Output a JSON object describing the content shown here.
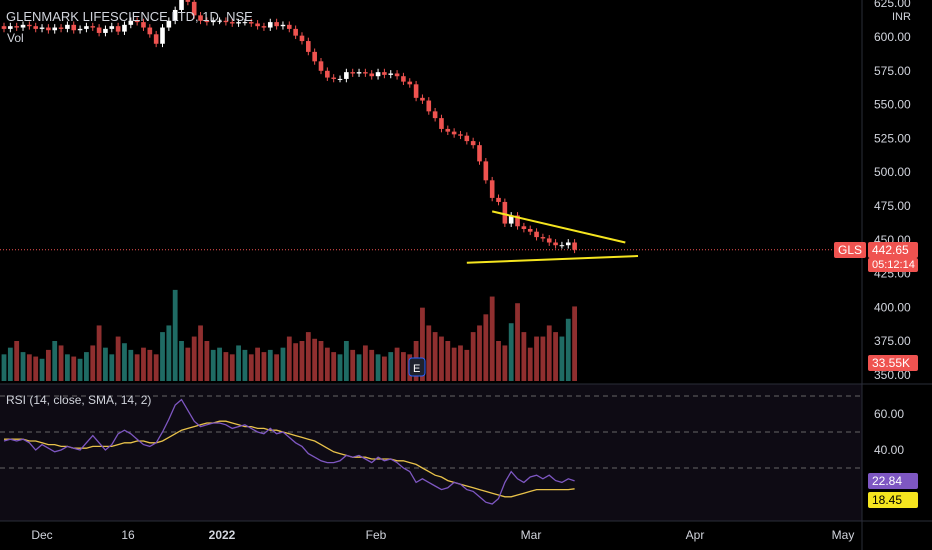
{
  "header": {
    "title": "GLENMARK LIFESCIENCE LTD, 1D, NSE",
    "vol_label": "Vol",
    "currency": "INR"
  },
  "price_axis": {
    "ticks": [
      "625.00",
      "600.00",
      "575.00",
      "550.00",
      "525.00",
      "500.00",
      "475.00",
      "450.00",
      "425.00",
      "400.00",
      "375.00",
      "350.00"
    ]
  },
  "rsi": {
    "label": "RSI (14, close, SMA, 14, 2)",
    "ticks": [
      "60.00",
      "40.00"
    ],
    "rsi_value": "22.84",
    "sma_value": "18.45"
  },
  "time_axis": {
    "labels": [
      "Dec",
      "16",
      "2022",
      "Feb",
      "Mar",
      "Apr",
      "May"
    ]
  },
  "badges": {
    "symbol": "GLS",
    "last_price": "442.65",
    "countdown": "05:12:14",
    "volume": "33.55K"
  },
  "colors": {
    "up": "#26a69a",
    "down": "#ef5350",
    "vol_up": "#1f6b64",
    "vol_down": "#8f2f2f",
    "rsi": "#7e57c2",
    "rsi_sma": "#e8c24a",
    "trendline": "#f5e51f"
  },
  "chart_data": {
    "type": "candlestick",
    "closes": [
      606,
      608,
      607,
      609,
      608,
      606,
      607,
      605,
      607,
      606,
      609,
      605,
      606,
      608,
      607,
      603,
      606,
      608,
      604,
      609,
      612,
      611,
      607,
      602,
      595,
      607,
      612,
      620,
      628,
      626,
      616,
      612,
      611,
      612,
      612,
      611,
      610,
      611,
      611,
      610,
      608,
      607,
      611,
      608,
      609,
      606,
      601,
      597,
      589,
      582,
      575,
      570,
      569,
      569,
      574,
      573,
      574,
      573,
      571,
      574,
      572,
      573,
      571,
      567,
      565,
      555,
      553,
      545,
      540,
      532,
      530,
      528,
      527,
      523,
      520,
      508,
      494,
      481,
      478,
      462,
      468,
      460,
      458,
      456,
      452,
      451,
      448,
      446,
      446,
      448,
      442.65
    ],
    "rsi": [
      45,
      46,
      45,
      46,
      44,
      40,
      43,
      41,
      39,
      40,
      42,
      41,
      40,
      44,
      48,
      44,
      40,
      43,
      49,
      51,
      49,
      46,
      43,
      42,
      44,
      50,
      57,
      65,
      68,
      62,
      56,
      53,
      54,
      55,
      55,
      54,
      52,
      53,
      54,
      52,
      50,
      49,
      52,
      49,
      50,
      47,
      44,
      42,
      38,
      36,
      34,
      33,
      33,
      34,
      37,
      36,
      37,
      35,
      33,
      36,
      34,
      35,
      33,
      30,
      28,
      22,
      24,
      22,
      20,
      18,
      19,
      22,
      21,
      18,
      17,
      14,
      11,
      10,
      13,
      22,
      28,
      24,
      22,
      25,
      26,
      24,
      26,
      23,
      22,
      24,
      22.84
    ],
    "rsi_sma": [
      46,
      46,
      46,
      46,
      45,
      45,
      44,
      43,
      43,
      42,
      42,
      41,
      41,
      41,
      42,
      42,
      42,
      42,
      43,
      44,
      44,
      45,
      45,
      44,
      44,
      45,
      47,
      49,
      51,
      52,
      53,
      54,
      55,
      55,
      56,
      56,
      55,
      54,
      53,
      53,
      52,
      52,
      51,
      51,
      50,
      49,
      48,
      47,
      46,
      45,
      43,
      41,
      39,
      38,
      37,
      36,
      36,
      36,
      35,
      35,
      35,
      35,
      34,
      34,
      33,
      32,
      30,
      28,
      26,
      25,
      23,
      22,
      21,
      20,
      19,
      18,
      17,
      16,
      15,
      14,
      14,
      15,
      16,
      17,
      18,
      18,
      18,
      18,
      18,
      18,
      18.45
    ],
    "volume": [
      12,
      15,
      18,
      13,
      12,
      11,
      10,
      14,
      18,
      16,
      12,
      11,
      10,
      13,
      16,
      25,
      15,
      12,
      20,
      17,
      14,
      12,
      15,
      14,
      12,
      22,
      25,
      41,
      18,
      15,
      20,
      25,
      18,
      14,
      15,
      13,
      12,
      16,
      14,
      12,
      15,
      13,
      14,
      12,
      15,
      20,
      17,
      18,
      22,
      19,
      18,
      15,
      13,
      12,
      18,
      14,
      12,
      16,
      14,
      12,
      11,
      13,
      15,
      13,
      12,
      18,
      33,
      25,
      22,
      20,
      18,
      15,
      16,
      14,
      22,
      25,
      30,
      38,
      18,
      16,
      26,
      35,
      22,
      15,
      20,
      20,
      25,
      22,
      20,
      28,
      33.55
    ],
    "volume_unit": "K",
    "ylim": [
      340,
      630
    ],
    "rsi_levels": [
      70,
      50,
      30
    ],
    "trendlines": [
      {
        "from": {
          "day": 77,
          "price": 471
        },
        "to": {
          "day": 98,
          "price": 448
        }
      },
      {
        "from": {
          "day": 73,
          "price": 433
        },
        "to": {
          "day": 100,
          "price": 438
        }
      }
    ]
  }
}
